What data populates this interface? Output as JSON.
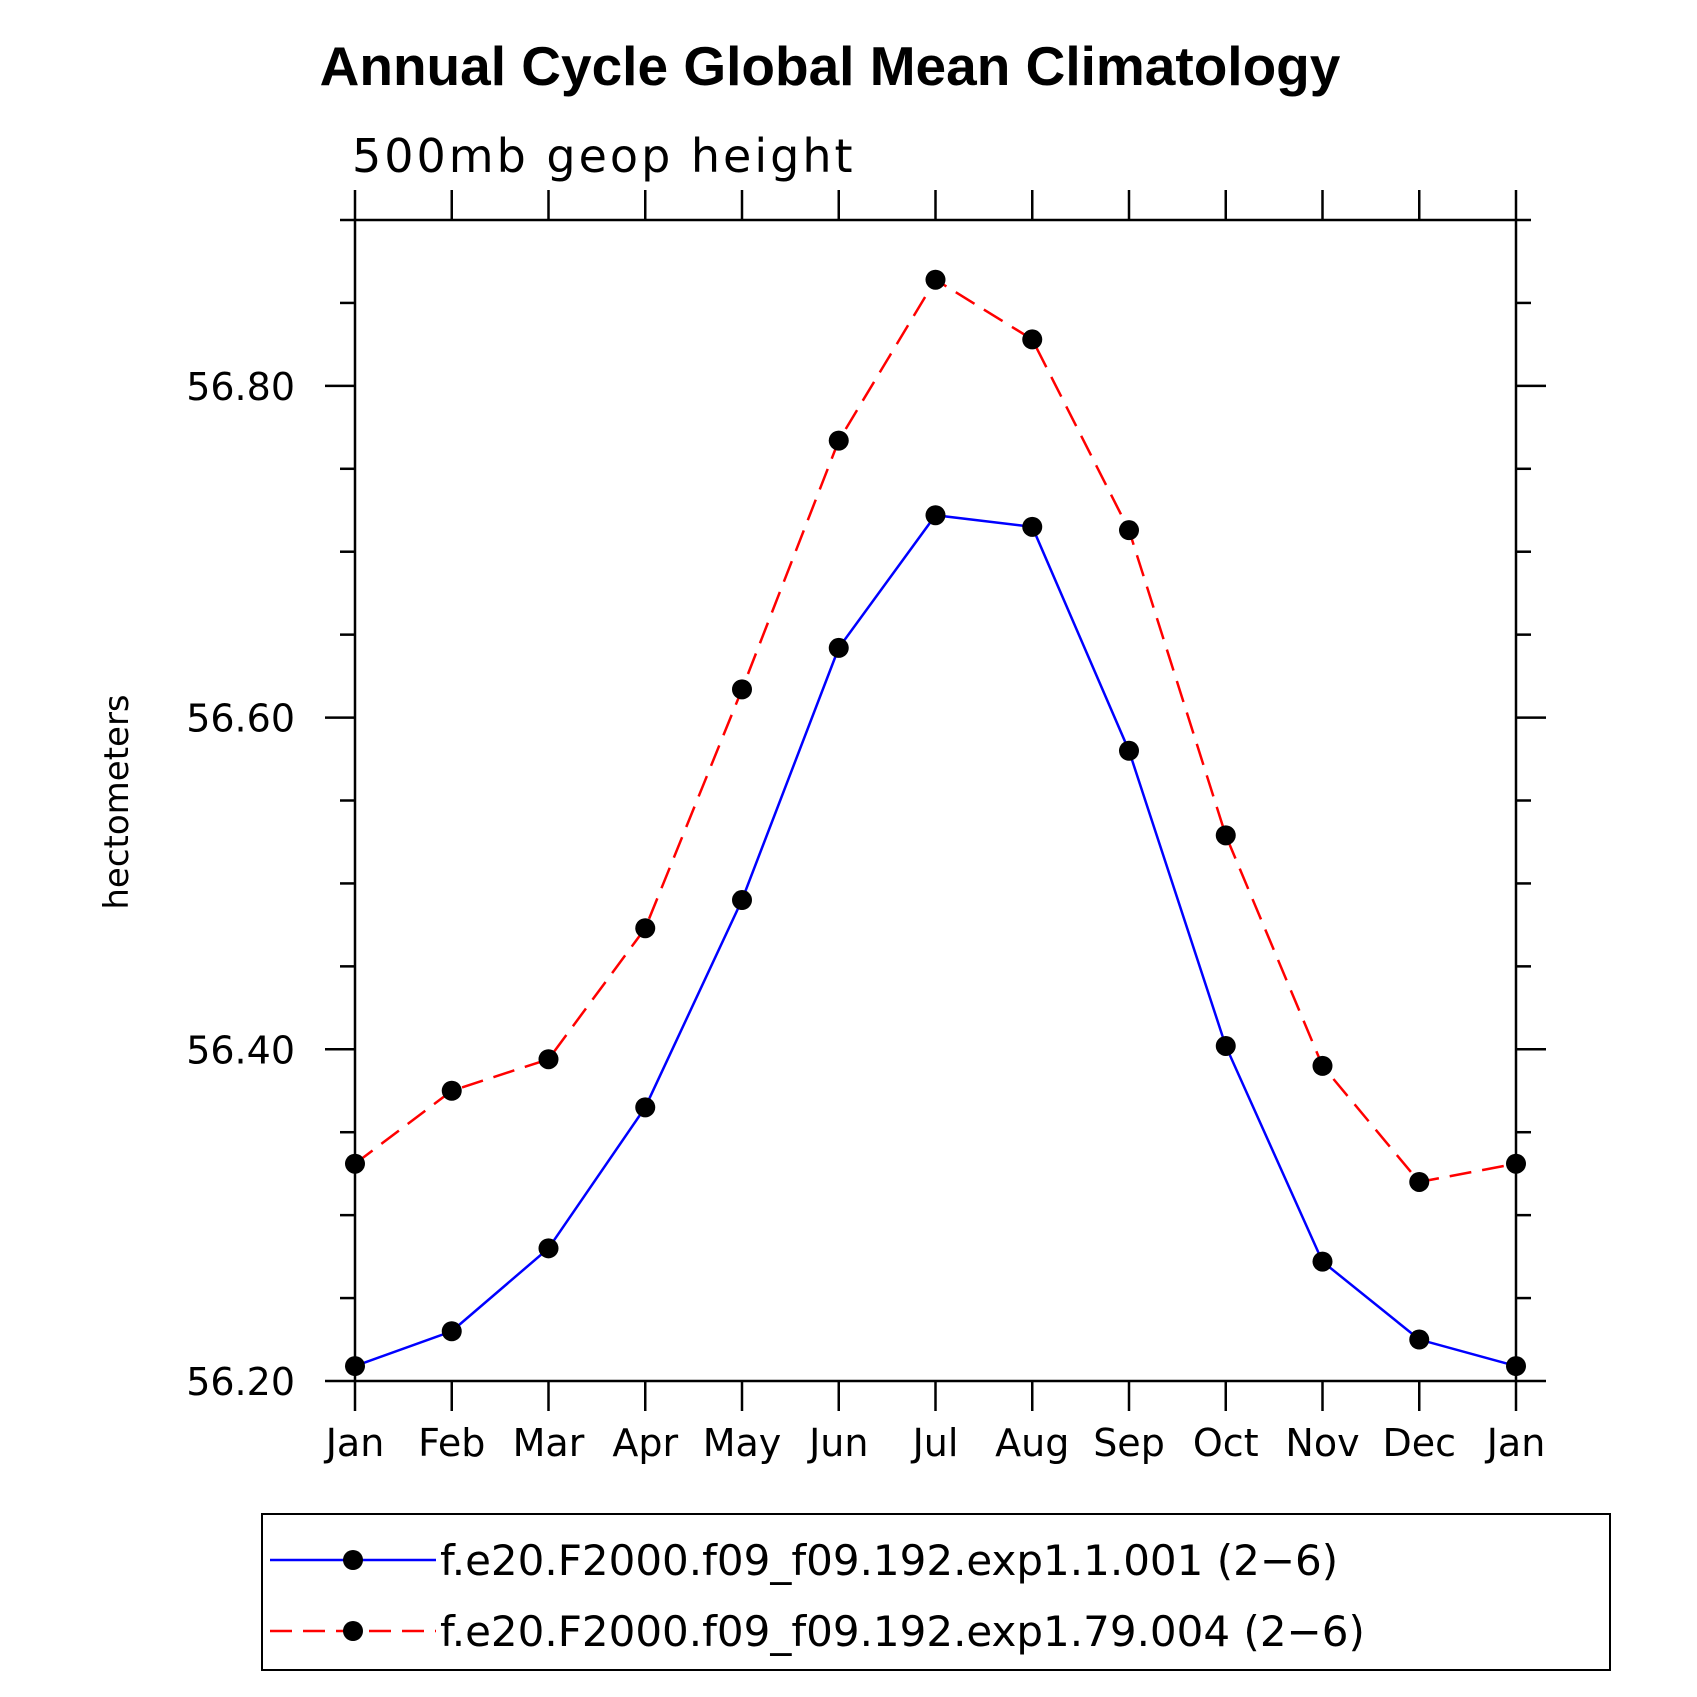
{
  "chart_data": {
    "type": "line",
    "title": "Annual Cycle Global Mean Climatology",
    "subtitle": "500mb geop height",
    "xlabel": "",
    "ylabel": "hectometers",
    "categories": [
      "Jan",
      "Feb",
      "Mar",
      "Apr",
      "May",
      "Jun",
      "Jul",
      "Aug",
      "Sep",
      "Oct",
      "Nov",
      "Dec",
      "Jan"
    ],
    "ylim": [
      56.2,
      56.9
    ],
    "yticks": [
      56.2,
      56.4,
      56.6,
      56.8
    ],
    "ytick_labels": [
      "56.20",
      "56.40",
      "56.60",
      "56.80"
    ],
    "series": [
      {
        "name": "f.e20.F2000.f09_f09.192.exp1.1.001 (2−6)",
        "color": "#0000ff",
        "dash": "solid",
        "marker": "filled-circle",
        "values": [
          56.209,
          56.23,
          56.28,
          56.365,
          56.49,
          56.642,
          56.722,
          56.715,
          56.58,
          56.402,
          56.272,
          56.225,
          56.209
        ]
      },
      {
        "name": "f.e20.F2000.f09_f09.192.exp1.79.004 (2−6)",
        "color": "#ff0000",
        "dash": "dashed",
        "marker": "filled-circle",
        "values": [
          56.331,
          56.375,
          56.394,
          56.473,
          56.617,
          56.767,
          56.864,
          56.828,
          56.713,
          56.529,
          56.39,
          56.32,
          56.331
        ]
      }
    ],
    "grid": false,
    "legend_position": "bottom"
  }
}
